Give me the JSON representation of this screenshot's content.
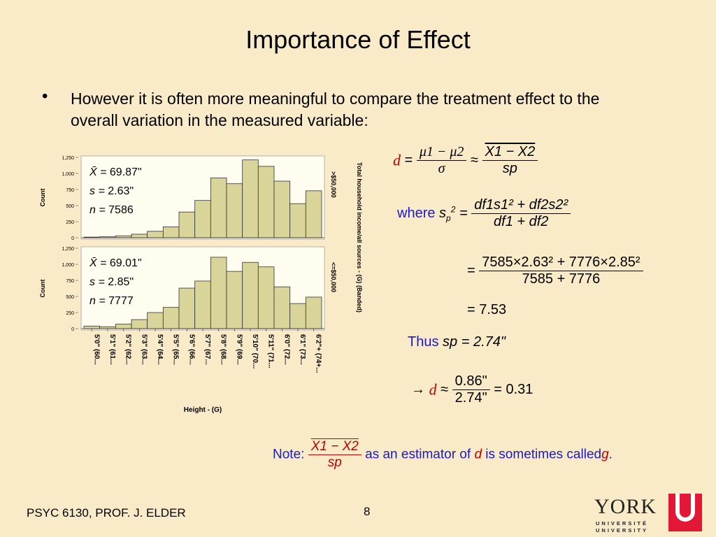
{
  "title": "Importance of Effect",
  "bullet": "However it is often  more meaningful to compare the treatment effect to the overall variation in the measured variable:",
  "footer": "PSYC 6130, PROF. J. ELDER",
  "page_number": "8",
  "logo": {
    "name": "YORK",
    "line1": "UNIVERSITÉ",
    "line2": "UNIVERSITY",
    "mark": "U"
  },
  "equations": {
    "d_lhs": "d",
    "d_num": "μ1 − μ2",
    "d_den": "σ",
    "approx": "≈",
    "d_est_num": "X1 − X2",
    "d_est_den": "sp",
    "where": "where",
    "sp2_num": "df1s1² + df2s2²",
    "sp2_den": "df1 + df2",
    "calc_num": "7585×2.63² + 7776×2.85²",
    "calc_den": "7585 + 7776",
    "calc_result": "= 7.53",
    "thus_label": "Thus",
    "thus_value": "sp = 2.74\"",
    "final_num": "0.86\"",
    "final_den": "2.74\"",
    "final_result": "= 0.31",
    "note_label": "Note:",
    "note_text1": "as an estimator of",
    "note_d": "d",
    "note_text2": "is sometimes called",
    "note_g": "g",
    "note_end": "."
  },
  "chart_data": [
    {
      "type": "bar",
      "panel": "top",
      "stats": {
        "xbar": "69.87\"",
        "s": "2.63\"",
        "n": "7586"
      },
      "ylabel": "Count",
      "xlabel": "Height - (G)",
      "panel_label": ">$50,000",
      "right_axis_label": "Total household income/all sources - (G) (Banded)",
      "ylim": [
        0,
        1250
      ],
      "y_ticks": [
        "0",
        "250",
        "500",
        "750",
        "1,000",
        "1,250"
      ],
      "categories": [
        "5'0\" (60...",
        "5'1\" (61...",
        "5'2\" (62...",
        "5'3\" (63...",
        "5'4\" (64...",
        "5'5\" (65...",
        "5'6\" (66...",
        "5'7\" (67...",
        "5'8\" (68...",
        "5'9\" (69...",
        "5'10\" (70...",
        "5'11\" (71...",
        "6'0\" (72...",
        "6'1\" (73...",
        "6'2\"+ (74+..."
      ],
      "values": [
        10,
        15,
        30,
        55,
        100,
        170,
        400,
        580,
        930,
        840,
        1210,
        1110,
        880,
        530,
        730
      ]
    },
    {
      "type": "bar",
      "panel": "bottom",
      "stats": {
        "xbar": "69.01\"",
        "s": "2.85\"",
        "n": "7777"
      },
      "ylabel": "Count",
      "panel_label": "<=$50,000",
      "ylim": [
        0,
        1250
      ],
      "y_ticks": [
        "0",
        "250",
        "500",
        "750",
        "1,000",
        "1,250"
      ],
      "categories": [
        "5'0\" (60...",
        "5'1\" (61...",
        "5'2\" (62...",
        "5'3\" (63...",
        "5'4\" (64...",
        "5'5\" (65...",
        "5'6\" (66...",
        "5'7\" (67...",
        "5'8\" (68...",
        "5'9\" (69...",
        "5'10\" (70...",
        "5'11\" (71...",
        "6'0\" (72...",
        "6'1\" (73...",
        "6'2\"+ (74+..."
      ],
      "values": [
        40,
        30,
        70,
        140,
        250,
        330,
        630,
        740,
        1110,
        890,
        1030,
        960,
        650,
        390,
        490
      ]
    }
  ]
}
